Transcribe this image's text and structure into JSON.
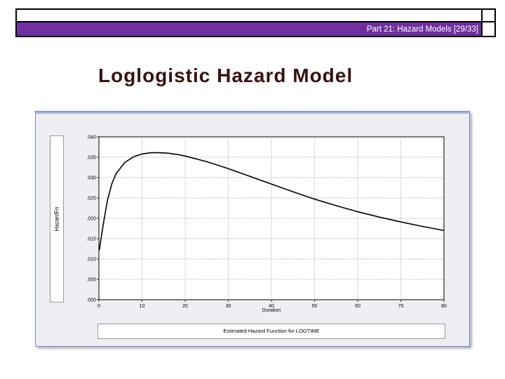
{
  "header": {
    "title": "Part 21: Hazard Models [29/33]"
  },
  "slide": {
    "title": "Loglogistic Hazard Model"
  },
  "colors": {
    "header_band": "#7030a0",
    "title_text": "#3a1010",
    "curve": "#000000"
  },
  "chart_data": {
    "type": "line",
    "title": "",
    "caption": "Estimated Hazard Function for LOGTIME",
    "xlabel": "Duration",
    "ylabel": "HazardFn",
    "xlim": [
      0,
      80
    ],
    "ylim": [
      0.0,
      0.04
    ],
    "xticks": [
      "0",
      "10",
      "20",
      "30",
      "40",
      "50",
      "60",
      "70",
      "80"
    ],
    "yticks": [
      ".000",
      ".005",
      ".010",
      ".015",
      ".020",
      ".025",
      ".030",
      ".035",
      ".040"
    ],
    "grid": true,
    "series": [
      {
        "x": [
          0.1,
          1,
          2,
          3,
          4,
          6,
          8,
          10,
          12,
          14,
          16,
          18,
          20,
          25,
          30,
          35,
          40,
          45,
          50,
          55,
          60,
          65,
          70,
          75,
          80
        ],
        "values": [
          0.0122,
          0.0185,
          0.0245,
          0.0285,
          0.031,
          0.0337,
          0.0351,
          0.0358,
          0.0361,
          0.0361,
          0.036,
          0.0357,
          0.0353,
          0.0339,
          0.0322,
          0.0303,
          0.0284,
          0.0265,
          0.0247,
          0.0231,
          0.0216,
          0.0203,
          0.0191,
          0.018,
          0.017
        ]
      }
    ]
  }
}
